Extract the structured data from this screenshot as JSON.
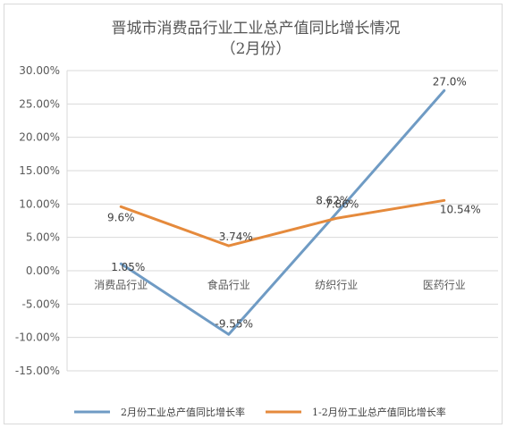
{
  "chart_data": {
    "type": "line",
    "title": "晋城市消费品行业工业总产值同比增长情况",
    "subtitle": "（2月份）",
    "categories": [
      "消费品行业",
      "食品行业",
      "纺织行业",
      "医药行业"
    ],
    "y_ticks": [
      "30.00%",
      "25.00%",
      "20.00%",
      "15.00%",
      "10.00%",
      "5.00%",
      "0.00%",
      "-5.00%",
      "-10.00%",
      "-15.00%"
    ],
    "ylim": [
      -15,
      30
    ],
    "grid": true,
    "legend_position": "bottom",
    "series": [
      {
        "name": "2月份工业总产值同比增长率",
        "color": "#6f9bc4",
        "values": [
          1.05,
          -9.55,
          8.62,
          27.0
        ],
        "labels": [
          "1.05%",
          "-9.55%",
          "8.62%",
          "27.0%"
        ]
      },
      {
        "name": "1-2月份工业总产值同比增长率",
        "color": "#e58a3c",
        "values": [
          9.6,
          3.74,
          7.86,
          10.54
        ],
        "labels": [
          "9.6%",
          "3.74%",
          "7.86%",
          "10.54%"
        ]
      }
    ]
  }
}
